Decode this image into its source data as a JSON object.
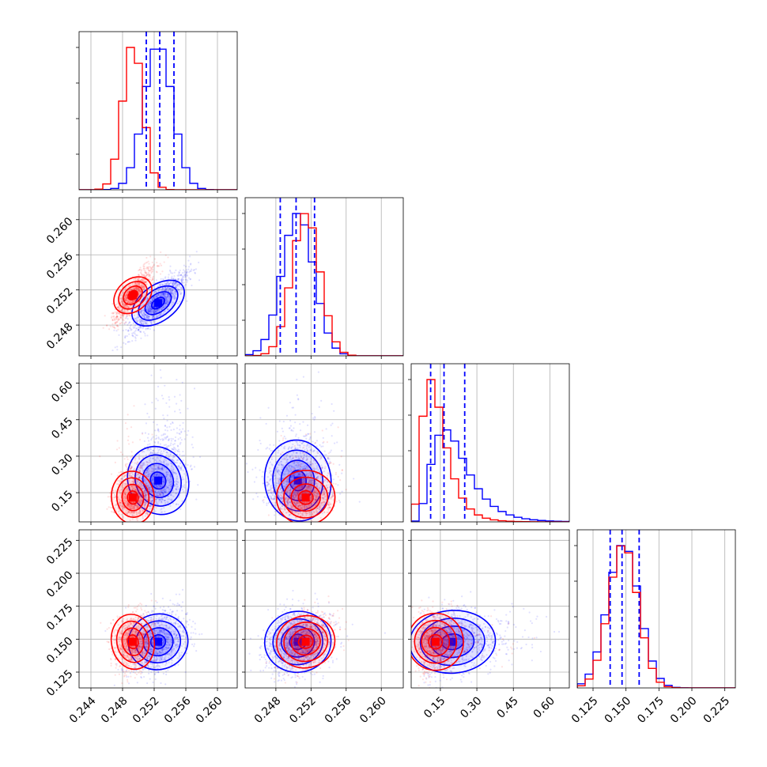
{
  "chart_data": {
    "type": "corner",
    "parameters": 4,
    "series": [
      {
        "color": "#0000ff",
        "means": [
          0.2525,
          0.2505,
          0.2,
          0.148
        ],
        "sds": [
          0.0018,
          0.0018,
          0.085,
          0.012
        ]
      },
      {
        "color": "#ff0000",
        "means": [
          0.2493,
          0.2514,
          0.13,
          0.148
        ],
        "sds": [
          0.0013,
          0.0016,
          0.028,
          0.011
        ]
      }
    ],
    "correlations": {
      "0-1": [
        0.85,
        0.85
      ],
      "0-2": [
        0.35,
        0.1
      ],
      "1-2": [
        0.1,
        0.05
      ],
      "0-3": [
        0.3,
        0.15
      ],
      "1-3": [
        0.15,
        0.25
      ],
      "2-3": [
        0.1,
        0.1
      ]
    },
    "quantile_lines": [
      [
        0.251,
        0.2527,
        0.2545
      ],
      [
        0.2485,
        0.2503,
        0.2524
      ],
      [
        0.11,
        0.165,
        0.25
      ],
      [
        0.138,
        0.147,
        0.16
      ]
    ],
    "ranges": [
      [
        0.2425,
        0.2625
      ],
      [
        0.2445,
        0.2625
      ],
      [
        0.03,
        0.68
      ],
      [
        0.113,
        0.233
      ]
    ],
    "ticks": [
      {
        "values": [
          0.244,
          0.248,
          0.252,
          0.256,
          0.26
        ],
        "labels": [
          "0.244",
          "0.248",
          "0.252",
          "0.256",
          "0.260"
        ]
      },
      {
        "values": [
          0.248,
          0.252,
          0.256,
          0.26
        ],
        "labels": [
          "0.248",
          "0.252",
          "0.256",
          "0.260"
        ]
      },
      {
        "values": [
          0.15,
          0.3,
          0.45,
          0.6
        ],
        "labels": [
          "0.15",
          "0.30",
          "0.45",
          "0.60"
        ]
      },
      {
        "values": [
          0.125,
          0.15,
          0.175,
          0.2,
          0.225
        ],
        "labels": [
          "0.125",
          "0.150",
          "0.175",
          "0.200",
          "0.225"
        ]
      }
    ],
    "grid": true,
    "quantile_line_color": "#0000ff",
    "quantile_line_style": "dashed"
  }
}
